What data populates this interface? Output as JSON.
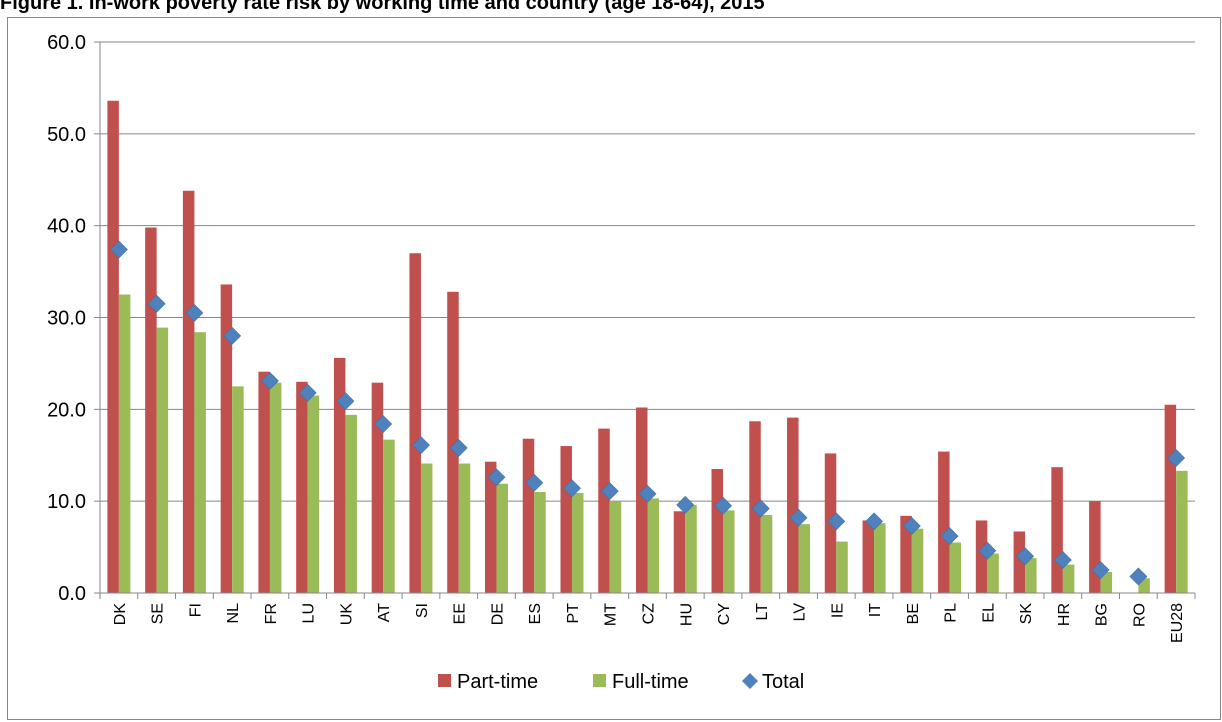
{
  "page": {
    "title": "Figure 1. In-work poverty rate risk by working time and country (age 18-64), 2015"
  },
  "chart_data": {
    "type": "bar",
    "categories": [
      "DK",
      "SE",
      "FI",
      "NL",
      "FR",
      "LU",
      "UK",
      "AT",
      "SI",
      "EE",
      "DE",
      "ES",
      "PT",
      "MT",
      "CZ",
      "HU",
      "CY",
      "LT",
      "LV",
      "IE",
      "IT",
      "BE",
      "PL",
      "EL",
      "SK",
      "HR",
      "BG",
      "RO",
      "EU28"
    ],
    "series": [
      {
        "name": "Part-time",
        "type": "bar",
        "color": "#c0504d",
        "values": [
          53.6,
          39.8,
          43.8,
          33.6,
          24.1,
          23.0,
          25.6,
          22.9,
          37.0,
          32.8,
          14.3,
          16.8,
          16.0,
          17.9,
          20.2,
          8.9,
          13.5,
          18.7,
          19.1,
          15.2,
          7.9,
          8.4,
          15.4,
          7.9,
          6.7,
          13.7,
          10.0,
          null,
          20.5
        ]
      },
      {
        "name": "Full-time",
        "type": "bar",
        "color": "#9bbb59",
        "values": [
          32.5,
          28.9,
          28.4,
          22.5,
          22.9,
          21.5,
          19.4,
          16.7,
          14.1,
          14.1,
          11.9,
          11.0,
          10.9,
          10.0,
          10.3,
          9.6,
          9.0,
          8.5,
          7.5,
          5.6,
          7.6,
          7.0,
          5.5,
          4.3,
          3.8,
          3.1,
          2.3,
          1.6,
          13.3
        ]
      },
      {
        "name": "Total",
        "type": "marker",
        "color": "#4f81bd",
        "values": [
          37.4,
          31.5,
          30.5,
          28.0,
          23.1,
          21.8,
          20.9,
          18.4,
          16.1,
          15.8,
          12.6,
          12.0,
          11.4,
          11.1,
          10.8,
          9.6,
          9.5,
          9.2,
          8.2,
          7.8,
          7.8,
          7.3,
          6.2,
          4.6,
          4.0,
          3.6,
          2.5,
          1.8,
          14.7
        ]
      }
    ],
    "ylim": [
      0,
      60
    ],
    "yticks": [
      "0.0",
      "10.0",
      "20.0",
      "30.0",
      "40.0",
      "50.0",
      "60.0"
    ],
    "ytick_values": [
      0,
      10,
      20,
      30,
      40,
      50,
      60
    ],
    "grid": true,
    "legend_position": "bottom"
  }
}
